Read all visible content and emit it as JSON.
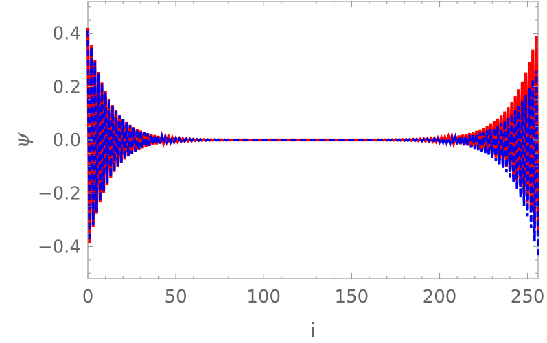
{
  "chart_data": {
    "type": "line",
    "xlabel": "i",
    "ylabel": "ψ",
    "xlim": [
      0,
      256
    ],
    "ylim": [
      -0.52,
      0.52
    ],
    "x_ticks": [
      {
        "value": 0,
        "label": "0"
      },
      {
        "value": 50,
        "label": "50"
      },
      {
        "value": 100,
        "label": "100"
      },
      {
        "value": 150,
        "label": "150"
      },
      {
        "value": 200,
        "label": "200"
      },
      {
        "value": 250,
        "label": "250"
      }
    ],
    "y_ticks": [
      {
        "value": 0.4,
        "label": "0.4"
      },
      {
        "value": 0.2,
        "label": "0.2"
      },
      {
        "value": 0.0,
        "label": "0.0"
      },
      {
        "value": -0.2,
        "label": "−0.2"
      },
      {
        "value": -0.4,
        "label": "−0.4"
      }
    ],
    "grid": false,
    "series": [
      {
        "color": "#ff0000",
        "style": "solid",
        "envelope": {
          "left": {
            "amplitude": 0.42,
            "decay_length": 12.0,
            "offset": 0.0
          },
          "right": {
            "amplitude": 0.39,
            "decay_length": 14.0,
            "offset": 0.03,
            "offset_decay": 12.0
          }
        }
      },
      {
        "color": "#0000ee",
        "style": "dashed",
        "envelope": {
          "left": {
            "amplitude": 0.41,
            "decay_length": 12.0,
            "offset": 0.0
          },
          "right": {
            "amplitude": 0.36,
            "decay_length": 14.0,
            "offset": -0.08,
            "offset_decay": 14.0
          }
        }
      }
    ]
  }
}
